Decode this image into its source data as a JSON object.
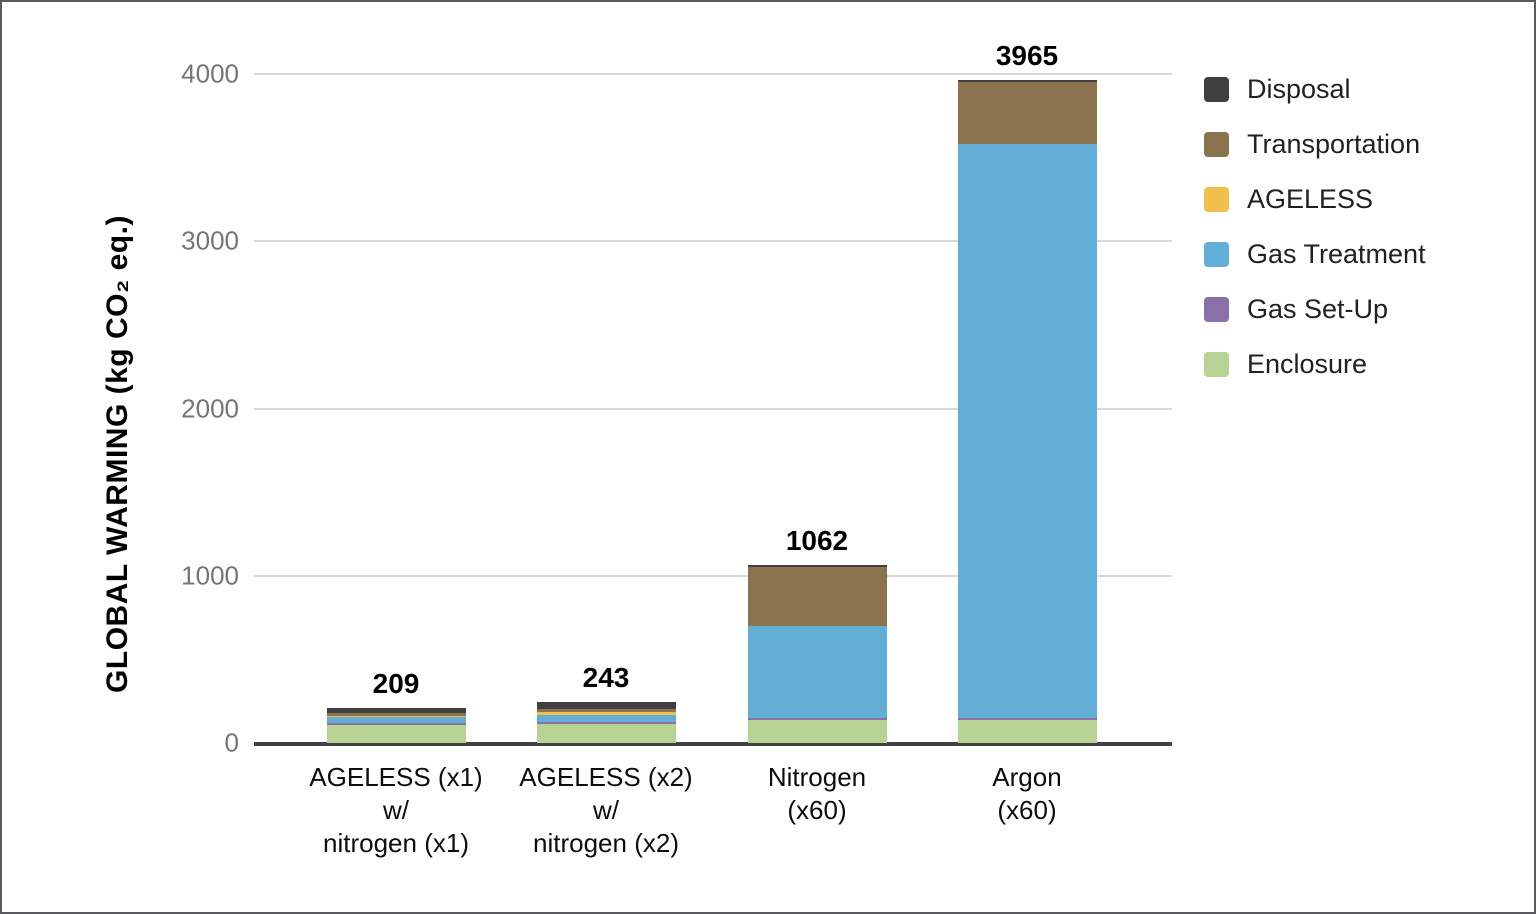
{
  "chart_data": {
    "type": "bar",
    "variant": "stacked",
    "title": "",
    "xlabel": "",
    "ylabel": "GLOBAL WARMING (kg CO₂ eq.)",
    "ylim": [
      0,
      4000
    ],
    "ytick_labels": [
      "0",
      "1000",
      "2000",
      "3000",
      "4000"
    ],
    "ytick_values": [
      0,
      1000,
      2000,
      3000,
      4000
    ],
    "grid": "horizontal",
    "legend_position": "right",
    "legend_order_top_to_bottom": [
      "Disposal",
      "Transportation",
      "AGELESS",
      "Gas Treatment",
      "Gas Set-Up",
      "Enclosure"
    ],
    "categories": [
      [
        "AGELESS (x1)",
        "w/",
        "nitrogen (x1)"
      ],
      [
        "AGELESS (x2)",
        "w/",
        "nitrogen (x2)"
      ],
      [
        "Nitrogen",
        "(x60)"
      ],
      [
        "Argon",
        "(x60)"
      ]
    ],
    "totals": [
      209,
      243,
      1062,
      3965
    ],
    "series": [
      {
        "name": "Enclosure",
        "color": "#b6d394",
        "values": [
          110,
          113,
          135,
          138
        ]
      },
      {
        "name": "Gas Set-Up",
        "color": "#8a6fa8",
        "values": [
          9,
          11,
          15,
          12
        ]
      },
      {
        "name": "Gas Treatment",
        "color": "#63aed7",
        "values": [
          36,
          45,
          550,
          3430
        ]
      },
      {
        "name": "AGELESS",
        "color": "#f1bf4b",
        "values": [
          6,
          17,
          0,
          0
        ]
      },
      {
        "name": "Transportation",
        "color": "#8a734d",
        "values": [
          18,
          17,
          350,
          370
        ]
      },
      {
        "name": "Disposal",
        "color": "#3f3f3f",
        "values": [
          30,
          40,
          12,
          15
        ]
      }
    ],
    "colors": {
      "gridline": "#d9d9d9",
      "axis_line": "#424242",
      "ytick_text": "#757575",
      "xtick_text": "#0d0d0d",
      "legend_text": "#212121",
      "value_label_text": "#000000",
      "background": "#ffffff"
    }
  }
}
